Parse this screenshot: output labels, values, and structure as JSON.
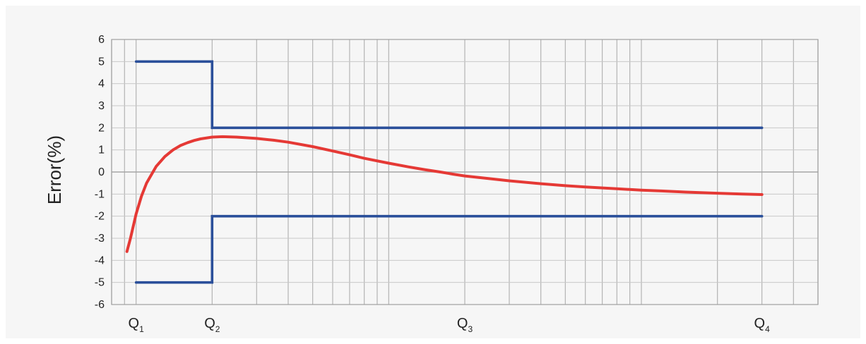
{
  "chart_data": {
    "type": "line",
    "title": "",
    "ylabel": "Error(%)",
    "xlabel": "",
    "ylim": [
      -6,
      6
    ],
    "yticks": [
      6,
      5,
      4,
      3,
      2,
      1,
      0,
      -1,
      -2,
      -3,
      -4,
      -5,
      -6
    ],
    "x_scale": "log",
    "categories": [
      {
        "main": "Q",
        "sub": "1",
        "value": 1
      },
      {
        "main": "Q",
        "sub": "2",
        "value": 2
      },
      {
        "main": "Q",
        "sub": "3",
        "value": 20
      },
      {
        "main": "Q",
        "sub": "4",
        "value": 300
      }
    ],
    "grid": true,
    "series": [
      {
        "role": "upper-limit",
        "color": "#2a4f9a",
        "x": [
          1,
          2,
          2,
          300
        ],
        "y": [
          5,
          5,
          2,
          2
        ]
      },
      {
        "role": "lower-limit",
        "color": "#2a4f9a",
        "x": [
          1,
          2,
          2,
          300
        ],
        "y": [
          -5,
          -5,
          -2,
          -2
        ]
      },
      {
        "role": "error-curve",
        "color": "#e53935",
        "x": [
          0.92,
          0.95,
          1,
          1.05,
          1.1,
          1.2,
          1.3,
          1.4,
          1.5,
          1.6,
          1.7,
          1.8,
          2,
          2.2,
          2.5,
          3,
          3.5,
          4,
          5,
          6,
          7,
          8,
          10,
          12,
          14,
          16,
          18,
          20,
          25,
          30,
          40,
          50,
          60,
          80,
          100,
          120,
          150,
          200,
          250,
          300
        ],
        "y": [
          -3.6,
          -3.0,
          -1.9,
          -1.1,
          -0.5,
          0.25,
          0.7,
          1.0,
          1.2,
          1.33,
          1.43,
          1.5,
          1.58,
          1.6,
          1.58,
          1.52,
          1.44,
          1.35,
          1.15,
          0.95,
          0.78,
          0.62,
          0.4,
          0.23,
          0.1,
          0.0,
          -0.1,
          -0.18,
          -0.3,
          -0.4,
          -0.53,
          -0.62,
          -0.68,
          -0.76,
          -0.82,
          -0.86,
          -0.91,
          -0.96,
          -1.0,
          -1.02
        ]
      }
    ]
  }
}
